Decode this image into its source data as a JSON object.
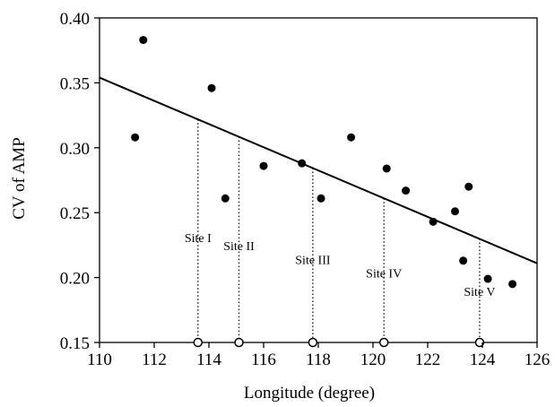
{
  "chart_data": {
    "type": "scatter",
    "xlabel": "Longitude (degree)",
    "ylabel": "CV of AMP",
    "xlim": [
      110,
      126
    ],
    "ylim": [
      0.15,
      0.4
    ],
    "xticks": [
      110,
      112,
      114,
      116,
      118,
      120,
      122,
      124,
      126
    ],
    "yticks": [
      "0.15",
      "0.20",
      "0.25",
      "0.30",
      "0.35",
      "0.40"
    ],
    "grid": false,
    "points": [
      {
        "x": 111.3,
        "y": 0.308
      },
      {
        "x": 111.6,
        "y": 0.383
      },
      {
        "x": 114.1,
        "y": 0.346
      },
      {
        "x": 114.6,
        "y": 0.261
      },
      {
        "x": 116.0,
        "y": 0.286
      },
      {
        "x": 117.4,
        "y": 0.288
      },
      {
        "x": 118.1,
        "y": 0.261
      },
      {
        "x": 119.2,
        "y": 0.308
      },
      {
        "x": 120.5,
        "y": 0.284
      },
      {
        "x": 121.2,
        "y": 0.267
      },
      {
        "x": 122.2,
        "y": 0.243
      },
      {
        "x": 123.0,
        "y": 0.251
      },
      {
        "x": 123.3,
        "y": 0.213
      },
      {
        "x": 123.5,
        "y": 0.27
      },
      {
        "x": 124.2,
        "y": 0.199
      },
      {
        "x": 125.1,
        "y": 0.195
      }
    ],
    "trend_line": {
      "x": [
        110,
        126
      ],
      "y": [
        0.354,
        0.211
      ]
    },
    "sites": [
      {
        "label": "Site I",
        "x": 113.6
      },
      {
        "label": "Site II",
        "x": 115.1
      },
      {
        "label": "Site III",
        "x": 117.8
      },
      {
        "label": "Site IV",
        "x": 120.4
      },
      {
        "label": "Site V",
        "x": 123.9
      }
    ]
  }
}
